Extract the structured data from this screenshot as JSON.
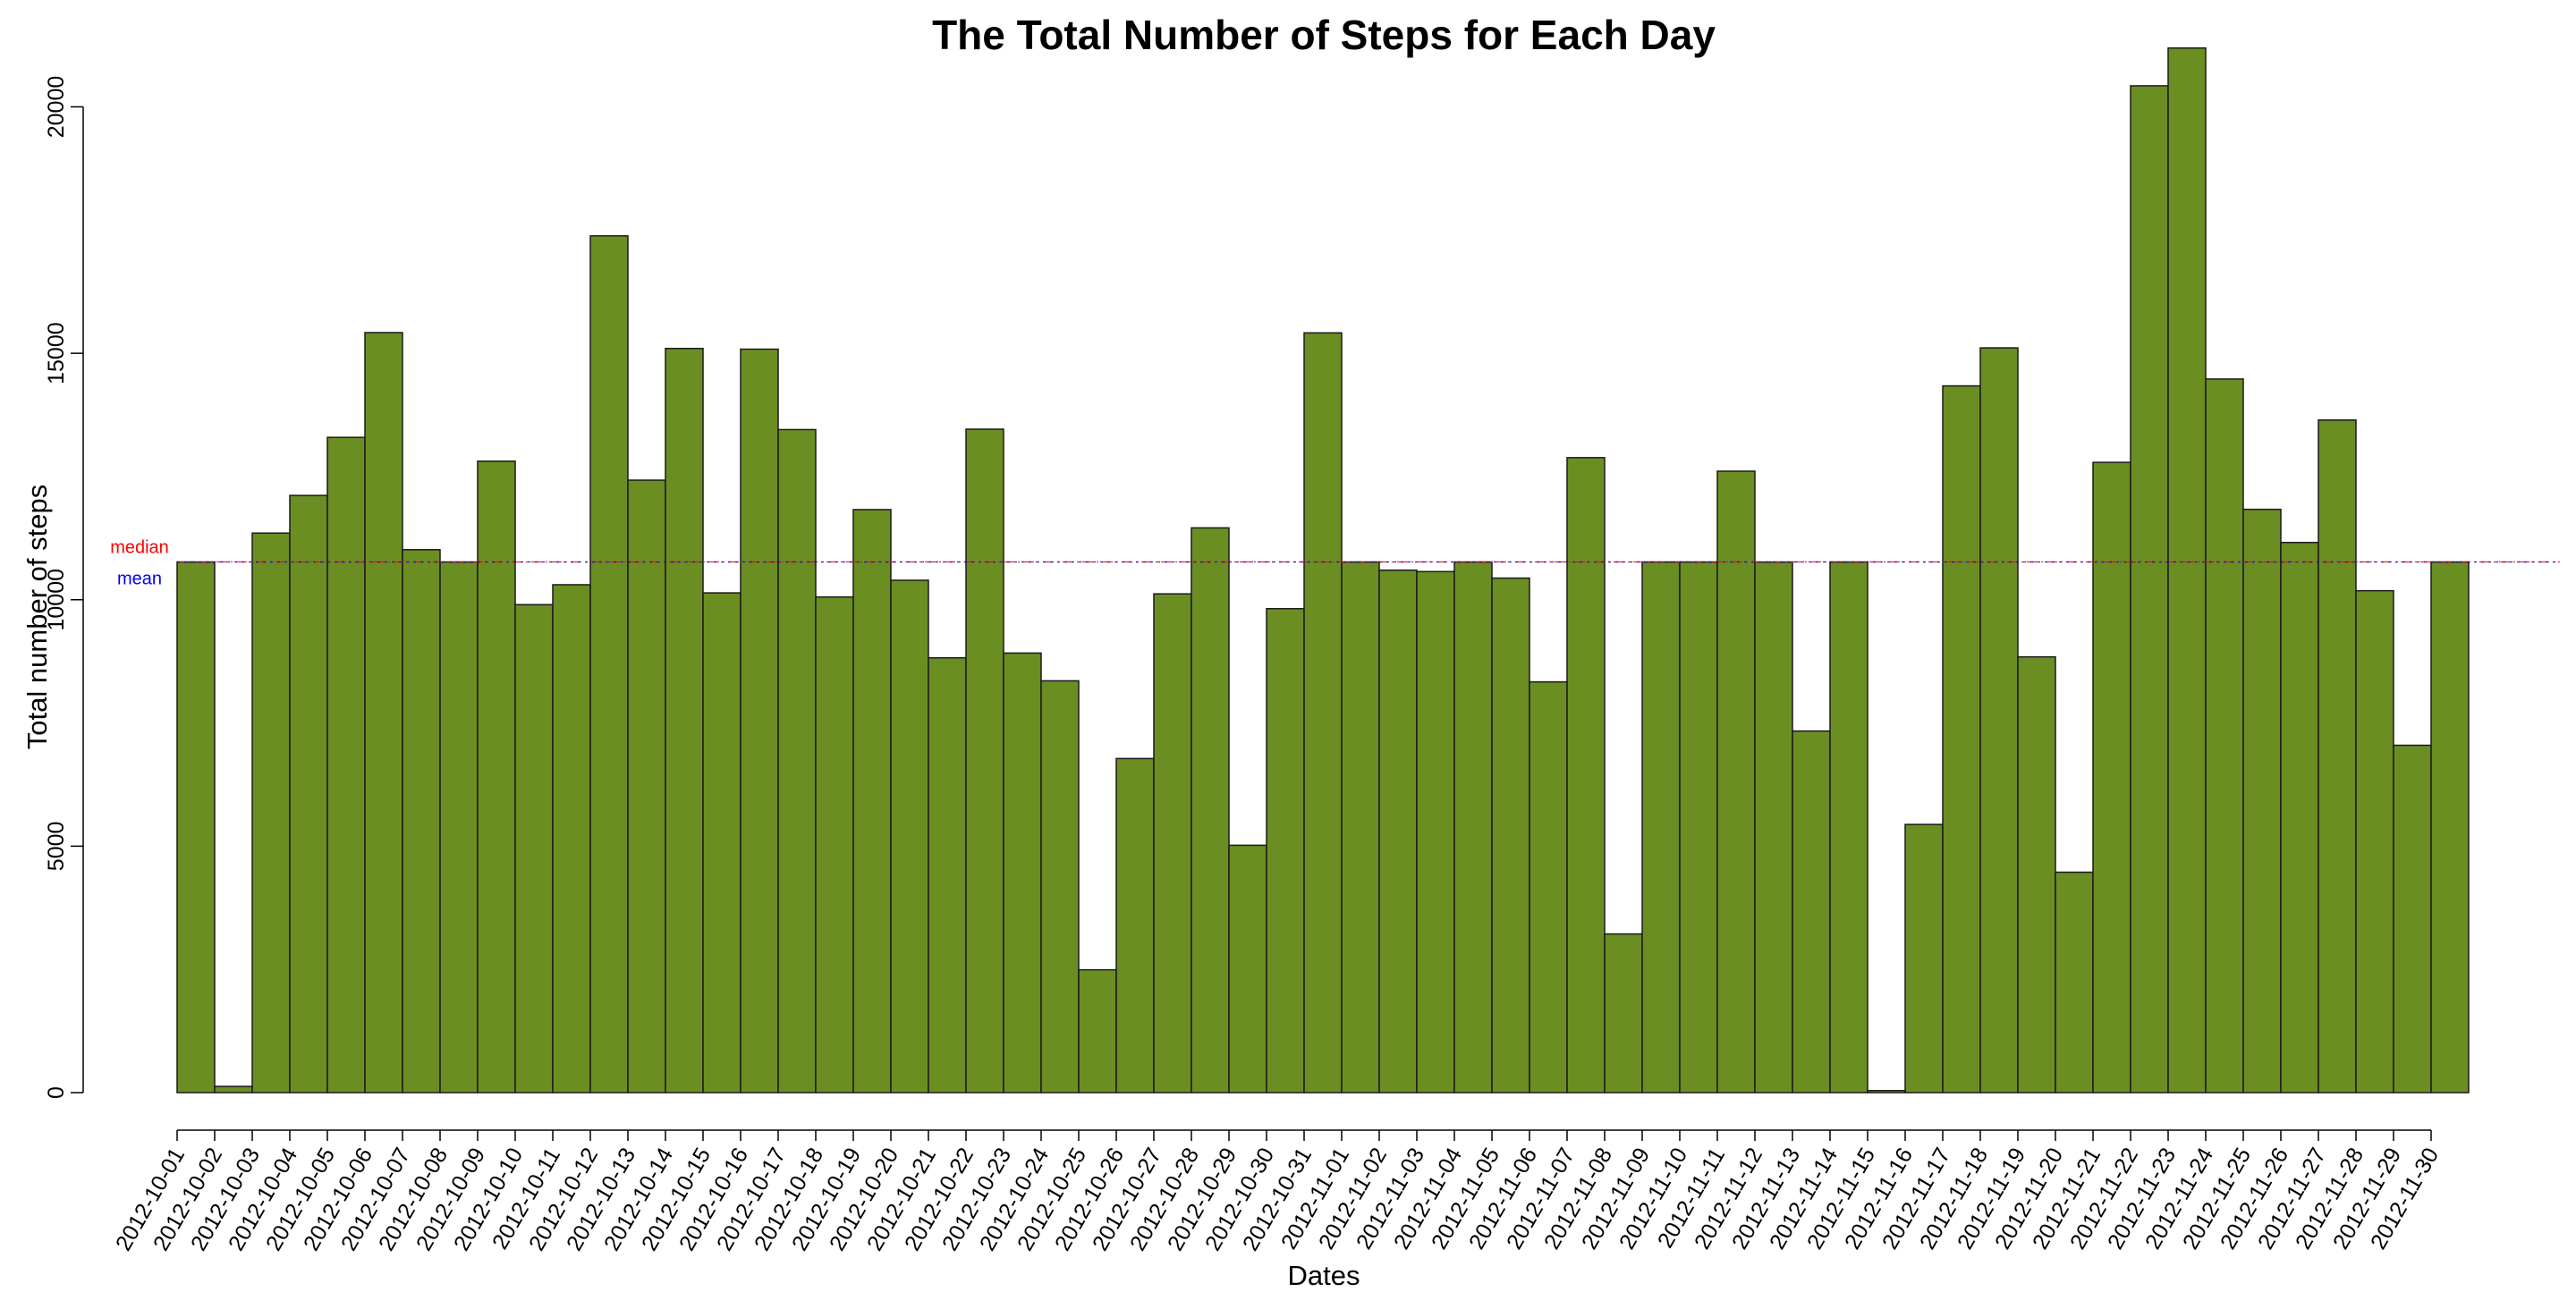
{
  "chart_data": {
    "type": "bar",
    "title": "The Total Number of Steps for Each Day",
    "xlabel": "Dates",
    "ylabel": "Total number of steps",
    "ylim": [
      0,
      21300
    ],
    "yticks": [
      0,
      5000,
      10000,
      15000,
      20000
    ],
    "bar_color": "#6b8e23",
    "bar_border_color": "#1a1a1a",
    "categories": [
      "2012-10-01",
      "2012-10-02",
      "2012-10-03",
      "2012-10-04",
      "2012-10-05",
      "2012-10-06",
      "2012-10-07",
      "2012-10-08",
      "2012-10-09",
      "2012-10-10",
      "2012-10-11",
      "2012-10-12",
      "2012-10-13",
      "2012-10-14",
      "2012-10-15",
      "2012-10-16",
      "2012-10-17",
      "2012-10-18",
      "2012-10-19",
      "2012-10-20",
      "2012-10-21",
      "2012-10-22",
      "2012-10-23",
      "2012-10-24",
      "2012-10-25",
      "2012-10-26",
      "2012-10-27",
      "2012-10-28",
      "2012-10-29",
      "2012-10-30",
      "2012-10-31",
      "2012-11-01",
      "2012-11-02",
      "2012-11-03",
      "2012-11-04",
      "2012-11-05",
      "2012-11-06",
      "2012-11-07",
      "2012-11-08",
      "2012-11-09",
      "2012-11-10",
      "2012-11-11",
      "2012-11-12",
      "2012-11-13",
      "2012-11-14",
      "2012-11-15",
      "2012-11-16",
      "2012-11-17",
      "2012-11-18",
      "2012-11-19",
      "2012-11-20",
      "2012-11-21",
      "2012-11-22",
      "2012-11-23",
      "2012-11-24",
      "2012-11-25",
      "2012-11-26",
      "2012-11-27",
      "2012-11-28",
      "2012-11-29",
      "2012-11-30"
    ],
    "values": [
      10766,
      126,
      11352,
      12116,
      13294,
      15420,
      11015,
      10766,
      12811,
      9900,
      10304,
      17382,
      12426,
      15098,
      10139,
      15084,
      13452,
      10056,
      11829,
      10395,
      8821,
      13460,
      8918,
      8355,
      2492,
      6778,
      10119,
      11458,
      5018,
      9819,
      15414,
      10766,
      10600,
      10571,
      10766,
      10439,
      8334,
      12883,
      3219,
      10766,
      10766,
      12608,
      10765,
      7336,
      10766,
      41,
      5441,
      14339,
      15110,
      8841,
      4472,
      12787,
      20427,
      21194,
      14478,
      11834,
      11162,
      13646,
      10183,
      7047,
      10766
    ],
    "reference_lines": [
      {
        "name": "median",
        "value": 10766,
        "color": "#ff0000"
      },
      {
        "name": "mean",
        "value": 10766,
        "color": "#0000ff"
      }
    ]
  }
}
